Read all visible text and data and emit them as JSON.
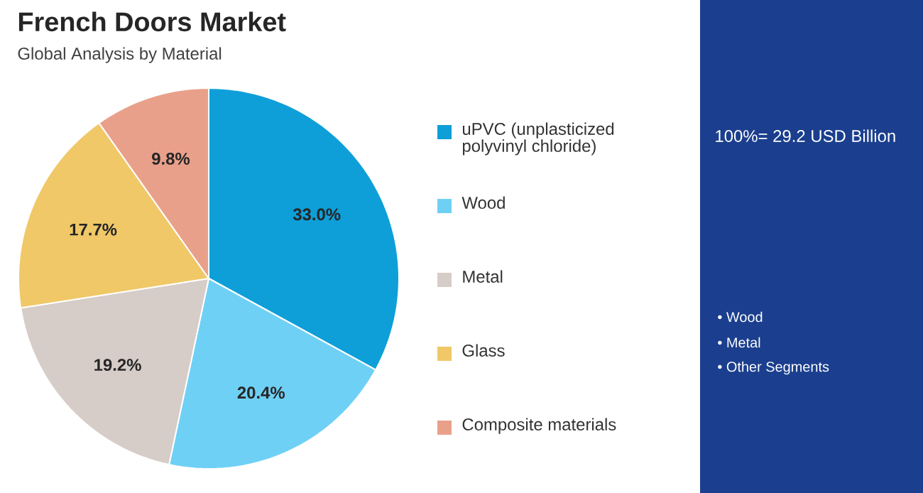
{
  "chart_data": {
    "type": "pie",
    "title": "French Doors Market",
    "subtitle": "Global Analysis by Material",
    "categories": [
      "uPVC (unplasticized polyvinyl chloride)",
      "Wood",
      "Metal",
      "Glass",
      "Composite materials"
    ],
    "values": [
      33.0,
      20.4,
      19.2,
      17.7,
      9.8
    ],
    "colors": [
      "#0e9fd8",
      "#6fd0f5",
      "#d6ccc8",
      "#f0c868",
      "#e9a08a"
    ],
    "value_labels": [
      "33.0%",
      "20.4%",
      "19.2%",
      "17.7%",
      "9.8%"
    ],
    "legend": "right",
    "annotations": [
      "100%= 29.2 USD Billion",
      "• Wood",
      "• Metal",
      "• Other Segments"
    ]
  }
}
